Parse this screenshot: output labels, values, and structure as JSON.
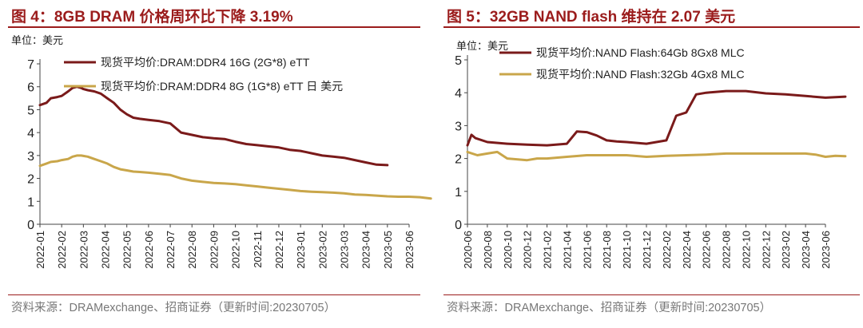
{
  "left": {
    "title": "图 4：8GB DRAM 价格周环比下降 3.19%",
    "source": "资料来源：DRAMexchange、招商证券（更新时间:20230705）",
    "colors": {
      "accent": "#9b1c1c",
      "series1": "#7a1a1a",
      "series2": "#c9a64a"
    },
    "chart_data": {
      "type": "line",
      "unit_label": "单位：美元",
      "ylim": [
        0,
        7
      ],
      "yticks": [
        "0",
        "1",
        "2",
        "3",
        "4",
        "5",
        "6",
        "7"
      ],
      "xticks": [
        "2022-01",
        "2022-02",
        "2022-03",
        "2022-04",
        "2022-05",
        "2022-06",
        "2022-07",
        "2022-08",
        "2022-09",
        "2022-10",
        "2022-11",
        "2022-12",
        "2023-01",
        "2023-02",
        "2023-03",
        "2023-04",
        "2023-05",
        "2023-06"
      ],
      "grid": false,
      "legend": "top-left",
      "series": [
        {
          "name": "现货平均价:DRAM:DDR4 16G (2G*8) eTT",
          "x": [
            0,
            0.3,
            0.5,
            0.8,
            1.0,
            1.3,
            1.5,
            1.7,
            1.9,
            2.0,
            2.2,
            2.5,
            2.8,
            3.1,
            3.4,
            3.7,
            4.0,
            4.3,
            4.6,
            5.0,
            5.5,
            6.0,
            6.5,
            7.0,
            7.5,
            8.0,
            8.5,
            9.0,
            9.5,
            10.0,
            10.5,
            11.0,
            11.5,
            12.0,
            12.5,
            13.0,
            13.5,
            14.0,
            14.5,
            15.0,
            15.5,
            16.0
          ],
          "values": [
            5.2,
            5.3,
            5.5,
            5.55,
            5.6,
            5.8,
            5.95,
            6.0,
            5.95,
            5.9,
            5.85,
            5.8,
            5.7,
            5.5,
            5.3,
            5.0,
            4.8,
            4.65,
            4.6,
            4.55,
            4.5,
            4.4,
            4.0,
            3.9,
            3.8,
            3.75,
            3.72,
            3.6,
            3.5,
            3.45,
            3.4,
            3.35,
            3.25,
            3.2,
            3.1,
            3.0,
            2.95,
            2.9,
            2.8,
            2.7,
            2.6,
            2.58
          ]
        },
        {
          "name": "现货平均价:DRAM:DDR4 8G (1G*8) eTT 日 美元",
          "x": [
            0,
            0.3,
            0.5,
            0.8,
            1.0,
            1.3,
            1.5,
            1.7,
            1.9,
            2.0,
            2.2,
            2.5,
            2.8,
            3.1,
            3.4,
            3.7,
            4.0,
            4.3,
            4.6,
            5.0,
            5.5,
            6.0,
            6.5,
            7.0,
            7.5,
            8.0,
            8.5,
            9.0,
            9.5,
            10.0,
            10.5,
            11.0,
            11.5,
            12.0,
            12.5,
            13.0,
            13.5,
            14.0,
            14.5,
            15.0,
            15.5,
            16.0,
            16.5,
            17.0,
            17.5,
            18.0
          ],
          "values": [
            2.55,
            2.65,
            2.72,
            2.75,
            2.8,
            2.85,
            2.95,
            3.0,
            3.0,
            2.98,
            2.95,
            2.85,
            2.75,
            2.65,
            2.5,
            2.4,
            2.35,
            2.3,
            2.28,
            2.25,
            2.2,
            2.15,
            2.0,
            1.9,
            1.85,
            1.8,
            1.78,
            1.75,
            1.7,
            1.65,
            1.6,
            1.55,
            1.5,
            1.45,
            1.42,
            1.4,
            1.38,
            1.35,
            1.3,
            1.28,
            1.25,
            1.22,
            1.2,
            1.2,
            1.18,
            1.12
          ]
        }
      ]
    }
  },
  "right": {
    "title": "图 5：32GB NAND flash 维持在 2.07 美元",
    "source": "资料来源：DRAMexchange、招商证券（更新时间:20230705）",
    "colors": {
      "accent": "#9b1c1c",
      "series1": "#7a1a1a",
      "series2": "#c9a64a"
    },
    "chart_data": {
      "type": "line",
      "unit_label": "单位：美元",
      "ylim": [
        0,
        5
      ],
      "yticks": [
        "0",
        "1",
        "2",
        "3",
        "4",
        "5"
      ],
      "xticks": [
        "2020-06",
        "2020-08",
        "2020-10",
        "2020-12",
        "2021-02",
        "2021-04",
        "2021-06",
        "2021-08",
        "2021-10",
        "2021-12",
        "2022-02",
        "2022-04",
        "2022-06",
        "2022-08",
        "2022-10",
        "2022-12",
        "2023-02",
        "2023-04",
        "2023-06"
      ],
      "grid": false,
      "legend": "top-left",
      "series": [
        {
          "name": "现货平均价:NAND Flash:64Gb 8Gx8 MLC",
          "x": [
            0,
            0.2,
            0.4,
            1,
            2,
            3,
            4,
            5,
            5.5,
            6,
            6.5,
            7,
            7.5,
            8,
            9,
            10,
            10.5,
            11,
            11.5,
            12,
            13,
            14,
            15,
            16,
            17,
            18,
            19
          ],
          "values": [
            2.4,
            2.72,
            2.62,
            2.5,
            2.45,
            2.42,
            2.4,
            2.45,
            2.82,
            2.8,
            2.7,
            2.55,
            2.52,
            2.5,
            2.45,
            2.55,
            3.3,
            3.4,
            3.95,
            4.0,
            4.05,
            4.05,
            3.98,
            3.95,
            3.9,
            3.85,
            3.88
          ]
        },
        {
          "name": "现货平均价:NAND Flash:32Gb 4Gx8 MLC",
          "x": [
            0,
            0.5,
            1,
            1.5,
            2,
            3,
            3.5,
            4,
            5,
            6,
            7,
            8,
            9,
            10,
            11,
            12,
            13,
            14,
            15,
            16,
            17,
            17.5,
            18,
            18.5,
            19
          ],
          "values": [
            2.2,
            2.1,
            2.15,
            2.2,
            2.0,
            1.95,
            2.0,
            2.0,
            2.05,
            2.1,
            2.1,
            2.1,
            2.05,
            2.08,
            2.1,
            2.12,
            2.15,
            2.15,
            2.15,
            2.15,
            2.15,
            2.12,
            2.05,
            2.08,
            2.07
          ]
        }
      ]
    }
  }
}
